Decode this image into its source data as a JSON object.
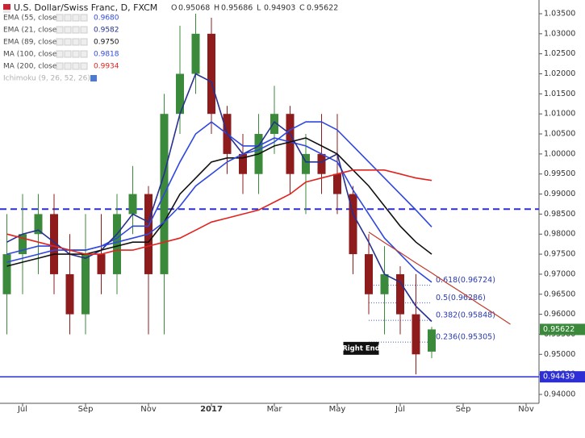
{
  "chart_data": {
    "type": "candlestick",
    "title": "U.S. Dollar/Swiss Franc, D, FXCM",
    "ohlc_labels": [
      "O",
      "H",
      "L",
      "C"
    ],
    "categories": [
      null,
      "Jul",
      null,
      null,
      null,
      "Sep",
      null,
      null,
      null,
      "Nov",
      null,
      null,
      null,
      "2017",
      null,
      null,
      null,
      "Mar",
      null,
      null,
      null,
      "May",
      null,
      null,
      null,
      "Jul",
      null,
      null,
      null,
      "Sep",
      null,
      null,
      null,
      "Nov"
    ],
    "open": [
      0.965,
      0.975,
      0.98,
      0.985,
      0.97,
      0.96,
      0.975,
      0.97,
      0.985,
      0.99,
      0.97,
      1.01,
      1.02,
      1.03,
      1.01,
      1.0,
      0.995,
      1.005,
      1.01,
      0.995,
      1.0,
      0.995,
      0.99,
      0.975,
      0.965,
      0.97,
      0.96,
      0.95068,
      null,
      null,
      null,
      null,
      null,
      null
    ],
    "high": [
      0.985,
      0.99,
      0.99,
      0.99,
      0.98,
      0.985,
      0.985,
      0.99,
      0.997,
      0.992,
      1.015,
      1.032,
      1.035,
      1.034,
      1.012,
      1.005,
      1.01,
      1.017,
      1.012,
      1.005,
      1.01,
      1.01,
      0.992,
      0.98,
      0.977,
      0.972,
      0.97,
      0.95686,
      null,
      null,
      null,
      null,
      null,
      null
    ],
    "low": [
      0.955,
      0.965,
      0.97,
      0.965,
      0.955,
      0.955,
      0.965,
      0.965,
      0.98,
      0.955,
      0.955,
      1.005,
      1.015,
      1.005,
      0.995,
      0.99,
      0.99,
      1.0,
      0.99,
      0.985,
      0.99,
      0.985,
      0.97,
      0.96,
      0.955,
      0.955,
      0.945,
      0.94903,
      null,
      null,
      null,
      null,
      null,
      null
    ],
    "close": [
      0.975,
      0.98,
      0.985,
      0.97,
      0.96,
      0.975,
      0.97,
      0.985,
      0.99,
      0.97,
      1.01,
      1.02,
      1.03,
      1.01,
      1.0,
      0.995,
      1.005,
      1.01,
      0.995,
      1.0,
      0.995,
      0.99,
      0.975,
      0.965,
      0.97,
      0.96,
      0.95,
      0.95622,
      null,
      null,
      null,
      null,
      null,
      null
    ],
    "up_color": "#3b8a3b",
    "down_color": "#8e1c1c",
    "series": [
      {
        "name": "EMA (55, close)",
        "color": "#2f48e0",
        "values": [
          0.975,
          0.976,
          0.977,
          0.977,
          0.976,
          0.976,
          0.977,
          0.979,
          0.982,
          0.982,
          0.99,
          0.998,
          1.005,
          1.008,
          1.005,
          1.002,
          1.002,
          1.004,
          1.003,
          1.002,
          1.0,
          0.998,
          0.991,
          0.985,
          0.979,
          0.975,
          0.971,
          0.968,
          null,
          null,
          null,
          null,
          null,
          null
        ],
        "value_labels": [
          null,
          null,
          null,
          null,
          null,
          null,
          null,
          null,
          null,
          null,
          null,
          null,
          null,
          null,
          null,
          null,
          null,
          null,
          null,
          null,
          null,
          null,
          null,
          null,
          null,
          null,
          null,
          "0.9680",
          null,
          null,
          null,
          null,
          null,
          null
        ]
      },
      {
        "name": "EMA (21, close)",
        "color": "#27308f",
        "values": [
          0.978,
          0.98,
          0.981,
          0.978,
          0.975,
          0.974,
          0.976,
          0.98,
          0.985,
          0.983,
          0.995,
          1.01,
          1.02,
          1.018,
          1.005,
          1.0,
          1.002,
          1.008,
          1.005,
          0.998,
          0.998,
          1.0,
          0.985,
          0.978,
          0.97,
          0.968,
          0.962,
          0.9582,
          null,
          null,
          null,
          null,
          null,
          null
        ],
        "value_labels": [
          null,
          null,
          null,
          null,
          null,
          null,
          null,
          null,
          null,
          null,
          null,
          null,
          null,
          null,
          null,
          null,
          null,
          null,
          null,
          null,
          null,
          null,
          null,
          null,
          null,
          null,
          null,
          "0.9582",
          null,
          null,
          null,
          null,
          null,
          null
        ]
      },
      {
        "name": "EMA (89, close)",
        "color": "#111111",
        "values": [
          0.972,
          0.973,
          0.974,
          0.975,
          0.975,
          0.975,
          0.976,
          0.977,
          0.978,
          0.978,
          0.983,
          0.99,
          0.994,
          0.998,
          0.999,
          0.999,
          1.0,
          1.002,
          1.003,
          1.004,
          1.002,
          1.0,
          0.996,
          0.992,
          0.987,
          0.982,
          0.978,
          0.975,
          null,
          null,
          null,
          null,
          null,
          null
        ],
        "value_labels": [
          null,
          null,
          null,
          null,
          null,
          null,
          null,
          null,
          null,
          null,
          null,
          null,
          null,
          null,
          null,
          null,
          null,
          null,
          null,
          null,
          null,
          null,
          null,
          null,
          null,
          null,
          null,
          "0.9750",
          null,
          null,
          null,
          null,
          null,
          null
        ]
      },
      {
        "name": "MA (100, close)",
        "color": "#2f48e0",
        "values": [
          0.973,
          0.974,
          0.975,
          0.976,
          0.976,
          0.976,
          0.977,
          0.978,
          0.979,
          0.98,
          0.983,
          0.987,
          0.992,
          0.995,
          0.998,
          1.0,
          1.001,
          1.003,
          1.006,
          1.008,
          1.008,
          1.006,
          1.002,
          0.998,
          0.994,
          0.99,
          0.986,
          0.9818,
          null,
          null,
          null,
          null,
          null,
          null
        ],
        "value_labels": [
          null,
          null,
          null,
          null,
          null,
          null,
          null,
          null,
          null,
          null,
          null,
          null,
          null,
          null,
          null,
          null,
          null,
          null,
          null,
          null,
          null,
          null,
          null,
          null,
          null,
          null,
          null,
          "0.9818",
          null,
          null,
          null,
          null,
          null,
          null
        ]
      },
      {
        "name": "MA (200, close)",
        "color": "#e0231f",
        "values": [
          0.98,
          0.979,
          0.978,
          0.977,
          0.976,
          0.975,
          0.975,
          0.976,
          0.976,
          0.977,
          0.978,
          0.979,
          0.981,
          0.983,
          0.984,
          0.985,
          0.986,
          0.988,
          0.99,
          0.993,
          0.994,
          0.995,
          0.996,
          0.996,
          0.996,
          0.995,
          0.994,
          0.9934,
          null,
          null,
          null,
          null,
          null,
          null
        ],
        "value_labels": [
          null,
          null,
          null,
          null,
          null,
          null,
          null,
          null,
          null,
          null,
          null,
          null,
          null,
          null,
          null,
          null,
          null,
          null,
          null,
          null,
          null,
          null,
          null,
          null,
          null,
          null,
          null,
          "0.9934",
          null,
          null,
          null,
          null,
          null,
          null
        ]
      }
    ],
    "inactive_indicators": [
      "Ichimoku (9, 26, 52, 26)"
    ],
    "trendline": {
      "color": "#c0392b",
      "values": [
        null,
        null,
        null,
        null,
        null,
        null,
        null,
        null,
        null,
        null,
        null,
        null,
        null,
        null,
        null,
        null,
        null,
        null,
        null,
        null,
        null,
        null,
        null,
        0.9805,
        0.9779,
        0.9754,
        0.9728,
        0.9703,
        0.9677,
        0.9652,
        0.9626,
        0.9601,
        0.9575,
        null
      ]
    },
    "fib_levels": [
      {
        "value": 0.96724,
        "label": "0.618(0.96724)"
      },
      {
        "value": 0.96286,
        "label": "0.5(0.96286)"
      },
      {
        "value": 0.95848,
        "label": "0.382(0.95848)"
      },
      {
        "value": 0.95305,
        "label": "0.236(0.95305)"
      }
    ],
    "hlines": [
      {
        "value": 0.98625,
        "color": "#2d2fd4",
        "dashed": true
      },
      {
        "value": 0.94439,
        "label": "0.94439",
        "color": "#2d2fd4",
        "dashed": false
      }
    ],
    "annotation": "Right End",
    "ylim": [
      0.93778,
      1.03842
    ],
    "yticks": [
      {
        "value": 0.94,
        "label": "0.94000"
      },
      {
        "value": 0.945,
        "label": "0.94500"
      },
      {
        "value": 0.95,
        "label": "0.95000"
      },
      {
        "value": 0.955,
        "label": "0.95500"
      },
      {
        "value": 0.96,
        "label": "0.96000"
      },
      {
        "value": 0.965,
        "label": "0.96500"
      },
      {
        "value": 0.97,
        "label": "0.97000"
      },
      {
        "value": 0.975,
        "label": "0.97500"
      },
      {
        "value": 0.98,
        "label": "0.98000"
      },
      {
        "value": 0.985,
        "label": "0.98500"
      },
      {
        "value": 0.99,
        "label": "0.99000"
      },
      {
        "value": 0.995,
        "label": "0.99500"
      },
      {
        "value": 1.0,
        "label": "1.00000"
      },
      {
        "value": 1.005,
        "label": "1.00500"
      },
      {
        "value": 1.01,
        "label": "1.01000"
      },
      {
        "value": 1.015,
        "label": "1.01500"
      },
      {
        "value": 1.02,
        "label": "1.02000"
      },
      {
        "value": 1.025,
        "label": "1.02500"
      },
      {
        "value": 1.03,
        "label": "1.03000"
      },
      {
        "value": 1.035,
        "label": "1.03500"
      }
    ],
    "last_price_color": "#3b8a3b"
  }
}
